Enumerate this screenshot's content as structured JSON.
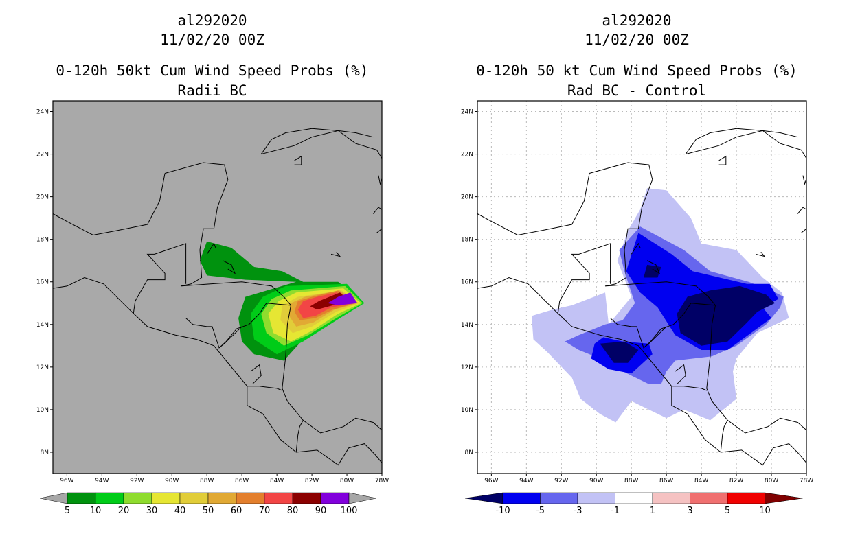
{
  "chart_data": [
    {
      "type": "map",
      "storm_id": "al292020",
      "date": "11/02/20 00Z",
      "title": "0-120h 50kt Cum Wind Speed Probs (%)",
      "subtitle": "Radii BC",
      "x_ticks": [
        "96W",
        "94W",
        "92W",
        "90W",
        "88W",
        "86W",
        "84W",
        "82W",
        "80W",
        "78W"
      ],
      "y_ticks": [
        "8N",
        "10N",
        "12N",
        "14N",
        "16N",
        "18N",
        "20N",
        "22N",
        "24N"
      ],
      "xlim_deg_w": [
        96.8,
        78.0
      ],
      "ylim_deg_n": [
        7.0,
        24.5
      ],
      "legend": {
        "labels": [
          "5",
          "10",
          "20",
          "30",
          "40",
          "50",
          "60",
          "70",
          "80",
          "90",
          "100"
        ],
        "colors": [
          "#a7a7a7",
          "#00920e",
          "#00cc18",
          "#8fdc2e",
          "#e6e633",
          "#e1cd39",
          "#e1a934",
          "#e37f2d",
          "#f24545",
          "#8b0000",
          "#8200dc",
          "#a7a7a7"
        ]
      },
      "background": "#a9a9a9",
      "contours": [
        {
          "level": "5-10",
          "color": "#00920e",
          "points": [
            [
              82.9,
              16.0
            ],
            [
              85.8,
              16.1
            ],
            [
              88.0,
              16.3
            ],
            [
              88.4,
              17.0
            ],
            [
              88.0,
              17.9
            ],
            [
              86.6,
              17.6
            ],
            [
              85.3,
              16.7
            ],
            [
              83.7,
              16.5
            ],
            [
              82.5,
              16.0
            ],
            [
              80.5,
              16.0
            ],
            [
              79.0,
              15.0
            ],
            [
              80.5,
              14.5
            ],
            [
              82.5,
              13.3
            ],
            [
              83.6,
              12.3
            ],
            [
              85.3,
              12.6
            ],
            [
              86.0,
              13.2
            ],
            [
              86.2,
              14.3
            ],
            [
              85.8,
              15.3
            ]
          ]
        },
        {
          "level": "10-20",
          "color": "#00cc18",
          "points": [
            [
              80.0,
              15.9
            ],
            [
              79.0,
              15.0
            ],
            [
              80.4,
              14.3
            ],
            [
              82.5,
              13.2
            ],
            [
              84.0,
              12.6
            ],
            [
              85.3,
              13.3
            ],
            [
              85.5,
              14.5
            ],
            [
              84.8,
              15.3
            ],
            [
              83.5,
              15.8
            ]
          ]
        },
        {
          "level": "20-30",
          "color": "#8fdc2e",
          "points": [
            [
              80.1,
              15.8
            ],
            [
              79.1,
              15.0
            ],
            [
              80.4,
              14.4
            ],
            [
              82.2,
              13.5
            ],
            [
              83.6,
              13.0
            ],
            [
              84.6,
              13.6
            ],
            [
              84.9,
              14.5
            ],
            [
              84.3,
              15.2
            ],
            [
              83.2,
              15.6
            ]
          ]
        },
        {
          "level": "30-40",
          "color": "#e6e633",
          "points": [
            [
              80.2,
              15.7
            ],
            [
              79.2,
              15.0
            ],
            [
              80.5,
              14.5
            ],
            [
              82.0,
              13.7
            ],
            [
              83.2,
              13.2
            ],
            [
              84.2,
              13.6
            ],
            [
              84.5,
              14.5
            ],
            [
              83.9,
              15.1
            ],
            [
              82.9,
              15.5
            ]
          ]
        },
        {
          "level": "40-50",
          "color": "#e1cd39",
          "points": [
            [
              80.3,
              15.6
            ],
            [
              79.3,
              15.0
            ],
            [
              80.6,
              14.6
            ],
            [
              82.0,
              13.9
            ],
            [
              83.1,
              13.6
            ],
            [
              83.8,
              14.2
            ],
            [
              83.7,
              14.9
            ],
            [
              82.8,
              15.3
            ]
          ]
        },
        {
          "level": "50-60",
          "color": "#e1a934",
          "points": [
            [
              80.4,
              15.6
            ],
            [
              79.4,
              15.0
            ],
            [
              80.7,
              14.7
            ],
            [
              81.9,
              14.1
            ],
            [
              82.9,
              13.9
            ],
            [
              83.3,
              14.4
            ],
            [
              83.2,
              15.0
            ],
            [
              82.4,
              15.3
            ]
          ]
        },
        {
          "level": "60-70",
          "color": "#e37f2d",
          "points": [
            [
              80.5,
              15.6
            ],
            [
              79.5,
              15.0
            ],
            [
              80.8,
              14.7
            ],
            [
              81.8,
              14.3
            ],
            [
              82.7,
              14.2
            ],
            [
              83.0,
              14.6
            ],
            [
              82.8,
              15.1
            ],
            [
              82.0,
              15.3
            ]
          ]
        },
        {
          "level": "70-80",
          "color": "#f24545",
          "points": [
            [
              80.6,
              15.5
            ],
            [
              79.6,
              15.0
            ],
            [
              80.9,
              14.8
            ],
            [
              81.8,
              14.4
            ],
            [
              82.5,
              14.3
            ],
            [
              82.8,
              14.7
            ],
            [
              82.5,
              15.1
            ],
            [
              81.7,
              15.3
            ]
          ]
        },
        {
          "level": "80-90",
          "color": "#8b0000",
          "points": [
            [
              80.4,
              15.5
            ],
            [
              79.7,
              15.0
            ],
            [
              80.8,
              14.9
            ],
            [
              81.7,
              14.7
            ],
            [
              82.1,
              14.85
            ],
            [
              81.6,
              15.1
            ]
          ]
        },
        {
          "level": "90-100",
          "color": "#8200dc",
          "points": [
            [
              79.8,
              15.5
            ],
            [
              79.4,
              15.0
            ],
            [
              80.5,
              14.9
            ],
            [
              81.1,
              15.0
            ],
            [
              80.5,
              15.3
            ]
          ]
        }
      ]
    },
    {
      "type": "map",
      "storm_id": "al292020",
      "date": "11/02/20 00Z",
      "title": "0-120h 50 kt Cum Wind Speed Probs (%)",
      "subtitle": "Rad BC - Control",
      "x_ticks": [
        "96W",
        "94W",
        "92W",
        "90W",
        "88W",
        "86W",
        "84W",
        "82W",
        "80W",
        "78W"
      ],
      "y_ticks": [
        "8N",
        "10N",
        "12N",
        "14N",
        "16N",
        "18N",
        "20N",
        "22N",
        "24N"
      ],
      "xlim_deg_w": [
        96.8,
        78.0
      ],
      "ylim_deg_n": [
        7.0,
        24.5
      ],
      "legend": {
        "labels": [
          "-10",
          "-5",
          "-3",
          "-1",
          "1",
          "3",
          "5",
          "10"
        ],
        "colors": [
          "#000066",
          "#0000f0",
          "#6666ee",
          "#c2c2f5",
          "#ffffff",
          "#f5c2c2",
          "#f07070",
          "#f00000",
          "#800000"
        ]
      },
      "background": "#ffffff",
      "contours": [
        {
          "level": "-1 to -3",
          "color": "#c2c2f5",
          "points": [
            [
              87.1,
              20.4
            ],
            [
              86.0,
              20.3
            ],
            [
              84.6,
              19.0
            ],
            [
              84.0,
              17.8
            ],
            [
              82.0,
              17.5
            ],
            [
              80.5,
              16.2
            ],
            [
              79.4,
              15.5
            ],
            [
              79.0,
              14.3
            ],
            [
              80.8,
              13.6
            ],
            [
              82.0,
              12.4
            ],
            [
              82.2,
              11.8
            ],
            [
              82.0,
              10.5
            ],
            [
              83.5,
              9.5
            ],
            [
              85.0,
              10.0
            ],
            [
              86.0,
              9.6
            ],
            [
              88.0,
              10.4
            ],
            [
              88.9,
              9.4
            ],
            [
              89.8,
              9.8
            ],
            [
              90.9,
              10.5
            ],
            [
              91.4,
              11.5
            ],
            [
              92.8,
              12.7
            ],
            [
              93.6,
              13.3
            ],
            [
              93.7,
              14.4
            ],
            [
              92.5,
              14.7
            ],
            [
              91.4,
              14.9
            ],
            [
              89.5,
              15.5
            ],
            [
              89.3,
              14.0
            ],
            [
              88.0,
              15.3
            ],
            [
              88.8,
              17.0
            ],
            [
              88.2,
              18.4
            ],
            [
              87.5,
              19.4
            ]
          ]
        },
        {
          "level": "-3 to -5",
          "color": "#6666ee",
          "points": [
            [
              87.5,
              18.6
            ],
            [
              85.0,
              17.5
            ],
            [
              83.5,
              16.5
            ],
            [
              81.3,
              16.0
            ],
            [
              80.0,
              15.6
            ],
            [
              79.3,
              15.3
            ],
            [
              79.5,
              14.8
            ],
            [
              80.3,
              14.0
            ],
            [
              82.0,
              13.0
            ],
            [
              83.4,
              12.5
            ],
            [
              85.5,
              12.3
            ],
            [
              86.0,
              11.8
            ],
            [
              86.3,
              11.2
            ],
            [
              87.0,
              11.2
            ],
            [
              88.5,
              11.8
            ],
            [
              89.5,
              12.3
            ],
            [
              91.0,
              12.8
            ],
            [
              91.8,
              13.2
            ],
            [
              91.0,
              13.5
            ],
            [
              89.5,
              14.0
            ],
            [
              88.5,
              14.2
            ],
            [
              87.8,
              15.0
            ],
            [
              88.4,
              16.5
            ],
            [
              88.7,
              17.5
            ]
          ]
        },
        {
          "level": "-5 to -10 (north)",
          "color": "#0000f0",
          "points": [
            [
              87.6,
              18.3
            ],
            [
              85.7,
              17.3
            ],
            [
              84.5,
              16.5
            ],
            [
              81.4,
              15.9
            ],
            [
              80.1,
              15.9
            ],
            [
              79.6,
              15.2
            ],
            [
              80.5,
              14.8
            ],
            [
              80.0,
              14.3
            ],
            [
              81.0,
              13.7
            ],
            [
              82.5,
              12.8
            ],
            [
              84.0,
              12.8
            ],
            [
              85.5,
              13.5
            ],
            [
              86.5,
              14.8
            ],
            [
              87.5,
              15.5
            ],
            [
              88.3,
              16.5
            ]
          ]
        },
        {
          "level": "-5 to -10 (south)",
          "color": "#0000f0",
          "points": [
            [
              90.1,
              13.1
            ],
            [
              89.6,
              13.4
            ],
            [
              88.5,
              13.2
            ],
            [
              87.0,
              13.1
            ],
            [
              86.8,
              12.6
            ],
            [
              88.0,
              11.7
            ],
            [
              89.3,
              11.9
            ],
            [
              90.3,
              12.4
            ]
          ]
        },
        {
          "level": "< -10 (east)",
          "color": "#000066",
          "points": [
            [
              81.8,
              15.8
            ],
            [
              80.3,
              15.4
            ],
            [
              79.8,
              15.0
            ],
            [
              80.8,
              14.6
            ],
            [
              81.5,
              14.0
            ],
            [
              82.5,
              13.2
            ],
            [
              84.0,
              13.0
            ],
            [
              85.2,
              13.6
            ],
            [
              85.4,
              14.5
            ],
            [
              84.8,
              15.3
            ],
            [
              83.5,
              15.6
            ]
          ]
        },
        {
          "level": "< -10 (north)",
          "color": "#000066",
          "points": [
            [
              87.1,
              16.8
            ],
            [
              86.3,
              16.7
            ],
            [
              86.5,
              16.2
            ],
            [
              87.3,
              16.2
            ]
          ]
        },
        {
          "level": "< -10 (south)",
          "color": "#000066",
          "points": [
            [
              89.0,
              12.2
            ],
            [
              89.8,
              13.1
            ],
            [
              88.4,
              13.2
            ],
            [
              87.6,
              12.8
            ],
            [
              88.2,
              12.2
            ]
          ]
        }
      ]
    }
  ]
}
